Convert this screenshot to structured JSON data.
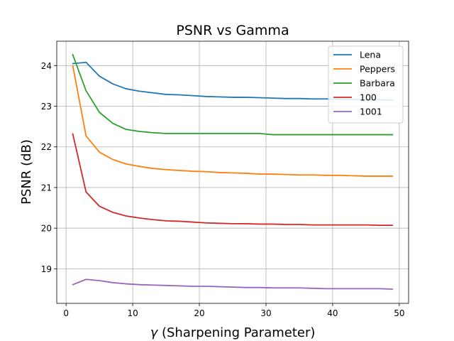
{
  "chart_data": {
    "type": "line",
    "title": "PSNR vs Gamma",
    "xlabel_symbol": "γ",
    "xlabel_rest": " (Sharpening Parameter)",
    "ylabel": "PSNR (dB)",
    "xlim": [
      -1.4,
      51.4
    ],
    "ylim": [
      18.15,
      24.6
    ],
    "xticks": [
      0,
      10,
      20,
      30,
      40,
      50
    ],
    "yticks": [
      19,
      20,
      21,
      22,
      23,
      24
    ],
    "grid": true,
    "legend_position": "top-right",
    "series": [
      {
        "name": "Lena",
        "color": "#1f77b4",
        "x": [
          1,
          3,
          5,
          7,
          9,
          11,
          13,
          15,
          17,
          19,
          21,
          23,
          25,
          27,
          29,
          31,
          33,
          35,
          37,
          39,
          41,
          43,
          45,
          47,
          49
        ],
        "y": [
          24.05,
          24.08,
          23.74,
          23.55,
          23.43,
          23.37,
          23.33,
          23.29,
          23.28,
          23.26,
          23.24,
          23.23,
          23.22,
          23.22,
          23.21,
          23.2,
          23.19,
          23.19,
          23.18,
          23.18,
          23.17,
          23.17,
          23.16,
          23.16,
          23.15
        ]
      },
      {
        "name": "Peppers",
        "color": "#ff7f0e",
        "x": [
          1,
          3,
          5,
          7,
          9,
          11,
          13,
          15,
          17,
          19,
          21,
          23,
          25,
          27,
          29,
          31,
          33,
          35,
          37,
          39,
          41,
          43,
          45,
          47,
          49
        ],
        "y": [
          24.0,
          22.27,
          21.87,
          21.69,
          21.58,
          21.52,
          21.47,
          21.44,
          21.42,
          21.4,
          21.39,
          21.37,
          21.36,
          21.35,
          21.33,
          21.33,
          21.32,
          21.31,
          21.31,
          21.3,
          21.3,
          21.29,
          21.28,
          21.28,
          21.28
        ]
      },
      {
        "name": "Barbara",
        "color": "#2ca02c",
        "x": [
          1,
          3,
          5,
          7,
          9,
          11,
          13,
          15,
          17,
          19,
          21,
          23,
          25,
          27,
          29,
          31,
          33,
          35,
          37,
          39,
          41,
          43,
          45,
          47,
          49
        ],
        "y": [
          24.27,
          23.38,
          22.85,
          22.58,
          22.43,
          22.38,
          22.35,
          22.33,
          22.33,
          22.33,
          22.33,
          22.33,
          22.33,
          22.33,
          22.33,
          22.3,
          22.3,
          22.3,
          22.3,
          22.3,
          22.3,
          22.3,
          22.3,
          22.3,
          22.3
        ]
      },
      {
        "name": "100",
        "color": "#d62728",
        "x": [
          1,
          3,
          5,
          7,
          9,
          11,
          13,
          15,
          17,
          19,
          21,
          23,
          25,
          27,
          29,
          31,
          33,
          35,
          37,
          39,
          41,
          43,
          45,
          47,
          49
        ],
        "y": [
          22.32,
          20.89,
          20.54,
          20.39,
          20.3,
          20.25,
          20.21,
          20.18,
          20.17,
          20.15,
          20.13,
          20.12,
          20.11,
          20.11,
          20.1,
          20.1,
          20.09,
          20.09,
          20.08,
          20.08,
          20.08,
          20.08,
          20.08,
          20.07,
          20.07
        ]
      },
      {
        "name": "1001",
        "color": "#9467bd",
        "x": [
          1,
          3,
          5,
          7,
          9,
          11,
          13,
          15,
          17,
          19,
          21,
          23,
          25,
          27,
          29,
          31,
          33,
          35,
          37,
          39,
          41,
          43,
          45,
          47,
          49
        ],
        "y": [
          18.61,
          18.74,
          18.71,
          18.66,
          18.63,
          18.61,
          18.6,
          18.59,
          18.58,
          18.57,
          18.57,
          18.56,
          18.55,
          18.54,
          18.54,
          18.53,
          18.53,
          18.53,
          18.52,
          18.51,
          18.51,
          18.51,
          18.51,
          18.51,
          18.5
        ]
      }
    ]
  }
}
